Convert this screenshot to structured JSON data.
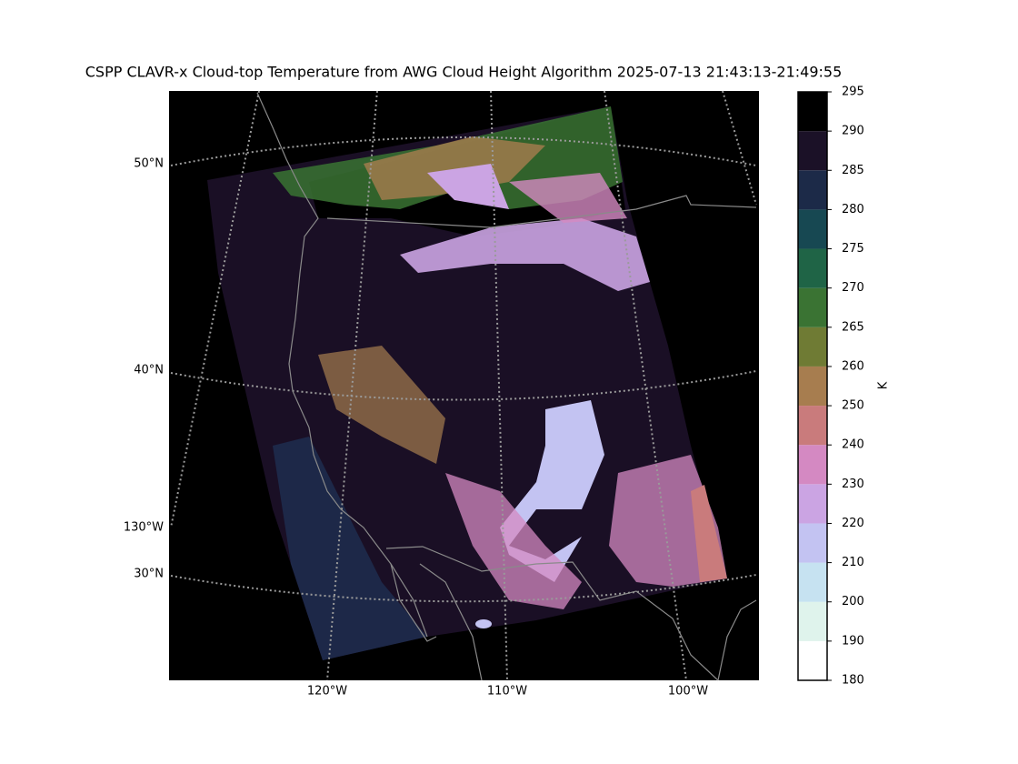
{
  "title": "CSPP CLAVR-x Cloud-top Temperature from AWG Cloud Height Algorithm 2025-07-13 21:43:13-21:49:55",
  "map": {
    "lat_labels": [
      "50°N",
      "40°N",
      "30°N"
    ],
    "lon_labels": [
      "120°W",
      "110°W",
      "100°W"
    ],
    "left_lon_label": "130°W"
  },
  "colorbar": {
    "label": "K",
    "ticks": [
      180,
      190,
      200,
      210,
      220,
      230,
      240,
      250,
      260,
      265,
      270,
      275,
      280,
      285,
      290,
      295
    ],
    "colors": [
      "#ffffff",
      "#dff3ec",
      "#c6e2f1",
      "#c3c3f2",
      "#cba4e3",
      "#d489c2",
      "#c97b7c",
      "#a77d4f",
      "#6f7b34",
      "#3a7333",
      "#1f6446",
      "#174852",
      "#1c2a48",
      "#1b1127",
      "#000000"
    ]
  }
}
